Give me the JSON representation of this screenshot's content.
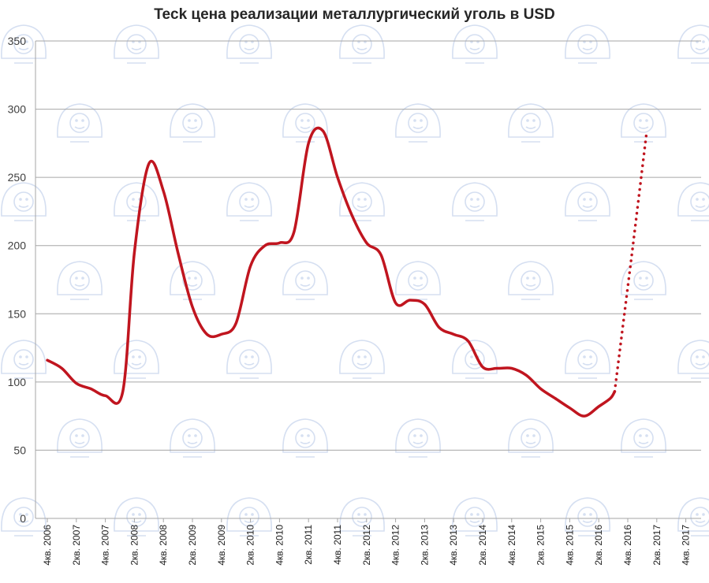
{
  "chart_data": {
    "type": "line",
    "title": "Teck цена реализации металлургический уголь в USD",
    "ylim": [
      0,
      350
    ],
    "yticks": [
      "0",
      "50",
      "100",
      "150",
      "200",
      "250",
      "300",
      "350"
    ],
    "grid": true,
    "legend": "none",
    "categories": [
      "4кв. 2006",
      "2кв. 2007",
      "4кв. 2007",
      "2кв. 2008",
      "4кв. 2008",
      "2кв. 2009",
      "4кв. 2009",
      "2кв. 2010",
      "4кв. 2010",
      "2кв. 2011",
      "4кв. 2011",
      "2кв. 2012",
      "4кв. 2012",
      "2кв. 2013",
      "4кв. 2013",
      "2кв. 2014",
      "4кв. 2014",
      "2кв. 2015",
      "4кв. 2015",
      "2кв. 2016",
      "4кв. 2016",
      "2кв. 2017",
      "4кв. 2017"
    ],
    "series": [
      {
        "style": "solid",
        "color": "#c0151f",
        "points": [
          {
            "x": 0.0,
            "y": 116
          },
          {
            "x": 0.5,
            "y": 110
          },
          {
            "x": 1.0,
            "y": 99
          },
          {
            "x": 1.5,
            "y": 95
          },
          {
            "x": 2.0,
            "y": 90
          },
          {
            "x": 2.6,
            "y": 93
          },
          {
            "x": 3.0,
            "y": 195
          },
          {
            "x": 3.5,
            "y": 260
          },
          {
            "x": 4.0,
            "y": 240
          },
          {
            "x": 4.5,
            "y": 195
          },
          {
            "x": 5.0,
            "y": 155
          },
          {
            "x": 5.5,
            "y": 135
          },
          {
            "x": 6.0,
            "y": 135
          },
          {
            "x": 6.5,
            "y": 143
          },
          {
            "x": 7.0,
            "y": 185
          },
          {
            "x": 7.5,
            "y": 200
          },
          {
            "x": 8.0,
            "y": 202
          },
          {
            "x": 8.5,
            "y": 210
          },
          {
            "x": 9.0,
            "y": 275
          },
          {
            "x": 9.5,
            "y": 284
          },
          {
            "x": 10.0,
            "y": 250
          },
          {
            "x": 10.5,
            "y": 222
          },
          {
            "x": 11.0,
            "y": 202
          },
          {
            "x": 11.5,
            "y": 193
          },
          {
            "x": 12.0,
            "y": 158
          },
          {
            "x": 12.5,
            "y": 160
          },
          {
            "x": 13.0,
            "y": 157
          },
          {
            "x": 13.5,
            "y": 140
          },
          {
            "x": 14.0,
            "y": 135
          },
          {
            "x": 14.5,
            "y": 130
          },
          {
            "x": 15.0,
            "y": 111
          },
          {
            "x": 15.5,
            "y": 110
          },
          {
            "x": 16.0,
            "y": 110
          },
          {
            "x": 16.5,
            "y": 105
          },
          {
            "x": 17.0,
            "y": 95
          },
          {
            "x": 17.5,
            "y": 88
          },
          {
            "x": 18.0,
            "y": 81
          },
          {
            "x": 18.5,
            "y": 75
          },
          {
            "x": 19.0,
            "y": 82
          },
          {
            "x": 19.4,
            "y": 88
          },
          {
            "x": 19.55,
            "y": 93
          }
        ]
      },
      {
        "style": "dotted",
        "color": "#c0151f",
        "points": [
          {
            "x": 19.55,
            "y": 93
          },
          {
            "x": 20.15,
            "y": 195
          },
          {
            "x": 20.65,
            "y": 283
          }
        ]
      }
    ]
  }
}
